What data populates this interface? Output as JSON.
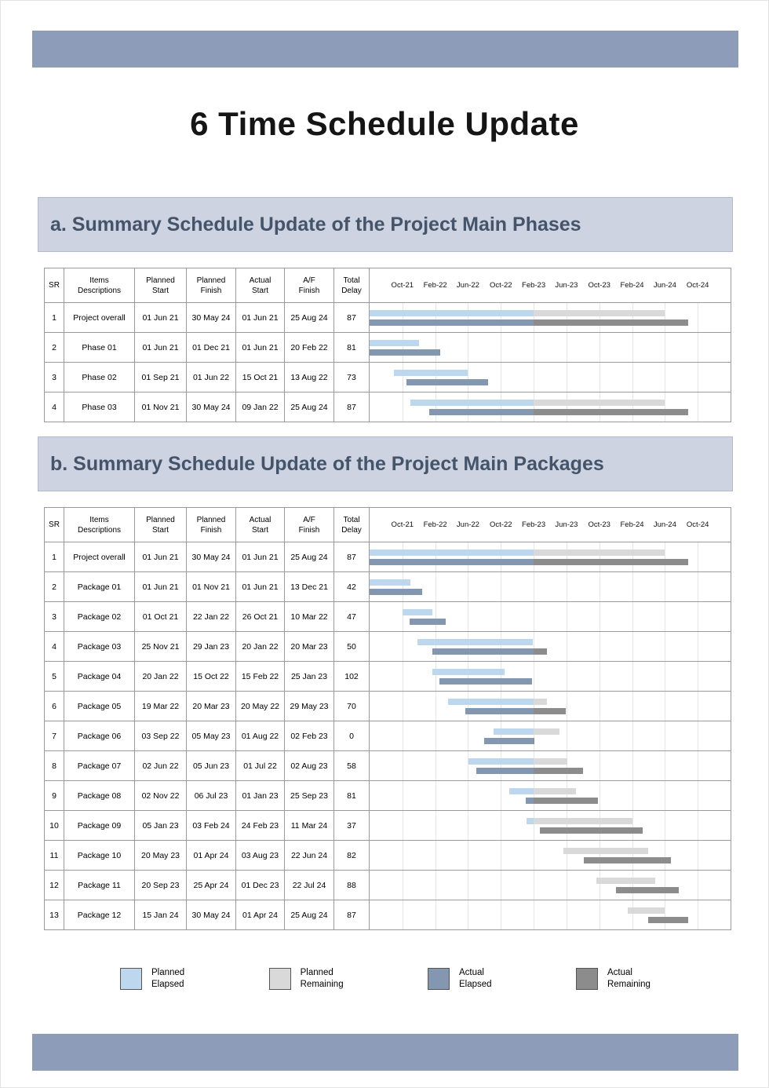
{
  "title": "6 Time Schedule Update",
  "colors": {
    "banner": "#8D9CB9",
    "section_header_bg": "#CDD3E0",
    "section_header_text": "#44546A",
    "planned_elapsed": "#BDD7EE",
    "planned_remaining": "#D9D9D9",
    "actual_elapsed": "#8497B0",
    "actual_remaining": "#8C8C8C"
  },
  "table_headers": [
    [
      "SR"
    ],
    [
      "Items",
      "Descriptions"
    ],
    [
      "Planned",
      "Start"
    ],
    [
      "Planned",
      "Finish"
    ],
    [
      "Actual",
      "Start"
    ],
    [
      "A/F",
      "Finish"
    ],
    [
      "Total",
      "Delay"
    ]
  ],
  "timeline": {
    "start_month_label": "Jun-21",
    "total_months": 44,
    "first_tick_month": 4,
    "tick_interval_months": 4,
    "data_date_month": 20,
    "ticks": [
      "Oct-21",
      "Feb-22",
      "Jun-22",
      "Oct-22",
      "Feb-23",
      "Jun-23",
      "Oct-23",
      "Feb-24",
      "Jun-24",
      "Oct-24"
    ]
  },
  "sections": [
    {
      "heading": "a. Summary Schedule Update of the Project Main Phases",
      "rows": [
        {
          "sr": "1",
          "item": "Project overall",
          "planned_start": "01 Jun 21",
          "planned_finish": "30 May 24",
          "actual_start": "01 Jun 21",
          "af_finish": "25 Aug 24",
          "delay": "87"
        },
        {
          "sr": "2",
          "item": "Phase 01",
          "planned_start": "01 Jun 21",
          "planned_finish": "01 Dec 21",
          "actual_start": "01 Jun 21",
          "af_finish": "20 Feb 22",
          "delay": "81"
        },
        {
          "sr": "3",
          "item": "Phase 02",
          "planned_start": "01 Sep 21",
          "planned_finish": "01 Jun 22",
          "actual_start": "15 Oct 21",
          "af_finish": "13 Aug 22",
          "delay": "73"
        },
        {
          "sr": "4",
          "item": "Phase 03",
          "planned_start": "01 Nov 21",
          "planned_finish": "30 May 24",
          "actual_start": "09 Jan 22",
          "af_finish": "25 Aug 24",
          "delay": "87"
        }
      ]
    },
    {
      "heading": "b. Summary Schedule Update of the Project Main Packages",
      "rows": [
        {
          "sr": "1",
          "item": "Project overall",
          "planned_start": "01 Jun 21",
          "planned_finish": "30 May 24",
          "actual_start": "01 Jun 21",
          "af_finish": "25 Aug 24",
          "delay": "87"
        },
        {
          "sr": "2",
          "item": "Package 01",
          "planned_start": "01 Jun 21",
          "planned_finish": "01 Nov 21",
          "actual_start": "01 Jun 21",
          "af_finish": "13 Dec 21",
          "delay": "42"
        },
        {
          "sr": "3",
          "item": "Package 02",
          "planned_start": "01 Oct 21",
          "planned_finish": "22 Jan 22",
          "actual_start": "26 Oct 21",
          "af_finish": "10 Mar 22",
          "delay": "47"
        },
        {
          "sr": "4",
          "item": "Package 03",
          "planned_start": "25 Nov 21",
          "planned_finish": "29 Jan 23",
          "actual_start": "20 Jan 22",
          "af_finish": "20 Mar 23",
          "delay": "50"
        },
        {
          "sr": "5",
          "item": "Package 04",
          "planned_start": "20 Jan 22",
          "planned_finish": "15 Oct 22",
          "actual_start": "15 Feb 22",
          "af_finish": "25 Jan 23",
          "delay": "102"
        },
        {
          "sr": "6",
          "item": "Package 05",
          "planned_start": "19 Mar 22",
          "planned_finish": "20 Mar 23",
          "actual_start": "20 May 22",
          "af_finish": "29 May 23",
          "delay": "70"
        },
        {
          "sr": "7",
          "item": "Package 06",
          "planned_start": "03 Sep 22",
          "planned_finish": "05 May 23",
          "actual_start": "01 Aug 22",
          "af_finish": "02 Feb 23",
          "delay": "0"
        },
        {
          "sr": "8",
          "item": "Package 07",
          "planned_start": "02 Jun 22",
          "planned_finish": "05 Jun 23",
          "actual_start": "01 Jul 22",
          "af_finish": "02 Aug 23",
          "delay": "58"
        },
        {
          "sr": "9",
          "item": "Package 08",
          "planned_start": "02 Nov 22",
          "planned_finish": "06 Jul 23",
          "actual_start": "01 Jan 23",
          "af_finish": "25 Sep 23",
          "delay": "81"
        },
        {
          "sr": "10",
          "item": "Package 09",
          "planned_start": "05 Jan 23",
          "planned_finish": "03 Feb 24",
          "actual_start": "24 Feb 23",
          "af_finish": "11 Mar 24",
          "delay": "37"
        },
        {
          "sr": "11",
          "item": "Package 10",
          "planned_start": "20 May 23",
          "planned_finish": "01 Apr 24",
          "actual_start": "03 Aug 23",
          "af_finish": "22 Jun 24",
          "delay": "82"
        },
        {
          "sr": "12",
          "item": "Package 11",
          "planned_start": "20 Sep 23",
          "planned_finish": "25 Apr 24",
          "actual_start": "01 Dec 23",
          "af_finish": "22 Jul 24",
          "delay": "88"
        },
        {
          "sr": "13",
          "item": "Package 12",
          "planned_start": "15 Jan 24",
          "planned_finish": "30 May 24",
          "actual_start": "01 Apr 24",
          "af_finish": "25 Aug 24",
          "delay": "87"
        }
      ]
    }
  ],
  "legend": [
    {
      "key": "planned_elapsed",
      "label": [
        "Planned",
        "Elapsed"
      ]
    },
    {
      "key": "planned_remaining",
      "label": [
        "Planned",
        "Remaining"
      ]
    },
    {
      "key": "actual_elapsed",
      "label": [
        "Actual",
        "Elapsed"
      ]
    },
    {
      "key": "actual_remaining",
      "label": [
        "Actual",
        "Remaining"
      ]
    }
  ]
}
